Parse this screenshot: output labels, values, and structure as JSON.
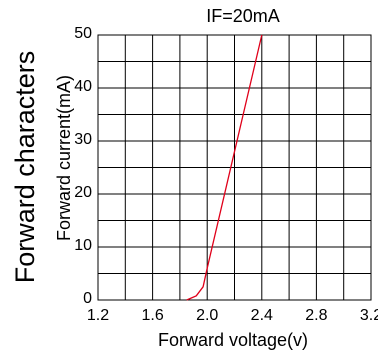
{
  "chart_data": {
    "type": "line",
    "title": "Forward characters",
    "subtitle": "IF=20mA",
    "xlabel": "Forward voltage(v)",
    "ylabel": "Forward current(mA)",
    "xlim": [
      1.2,
      3.2
    ],
    "ylim": [
      0,
      50
    ],
    "x_ticks": [
      "1.2",
      "1.6",
      "2.0",
      "2.4",
      "2.8",
      "3.2"
    ],
    "y_ticks": [
      "0",
      "10",
      "20",
      "30",
      "40",
      "50"
    ],
    "grid": true,
    "series": [
      {
        "color": "#e0001a",
        "points": [
          [
            1.85,
            0
          ],
          [
            1.92,
            0.8
          ],
          [
            1.97,
            2.5
          ],
          [
            2.0,
            6
          ],
          [
            2.4,
            50
          ]
        ]
      }
    ]
  }
}
